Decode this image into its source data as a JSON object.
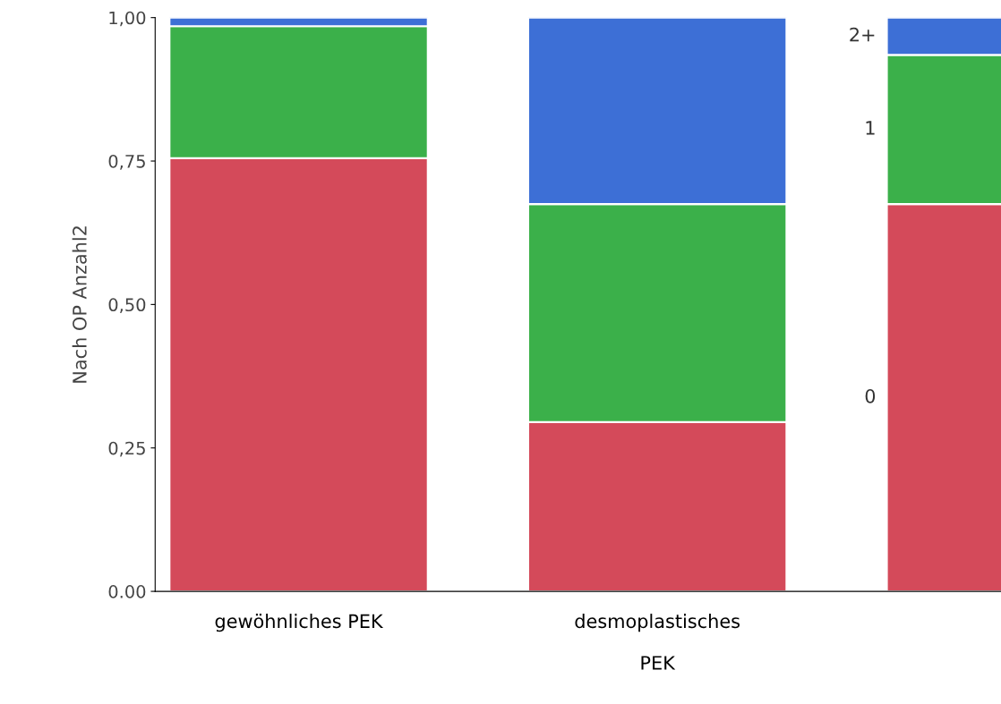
{
  "chart_data": {
    "type": "bar",
    "stacked": true,
    "ylabel": "Nach OP Anzahl2",
    "categories": [
      "gewöhnliches PEK",
      "desmoplastisches\n\nPEK",
      null
    ],
    "series": [
      {
        "name": "0",
        "color": "#d44a5a",
        "values": [
          0.755,
          0.295,
          0.675
        ]
      },
      {
        "name": "1",
        "color": "#3bb04a",
        "values": [
          0.23,
          0.38,
          0.26
        ]
      },
      {
        "name": "2+",
        "color": "#3d6fd6",
        "values": [
          0.015,
          0.325,
          0.065
        ]
      }
    ],
    "ylim": [
      0,
      1
    ],
    "yticks": [
      {
        "value": 0,
        "label": "0.00"
      },
      {
        "value": 0.25,
        "label": "0,25"
      },
      {
        "value": 0.5,
        "label": "0,50"
      },
      {
        "value": 0.75,
        "label": "0,75"
      },
      {
        "value": 1,
        "label": "1,00"
      }
    ],
    "grid": false,
    "legend": false
  }
}
